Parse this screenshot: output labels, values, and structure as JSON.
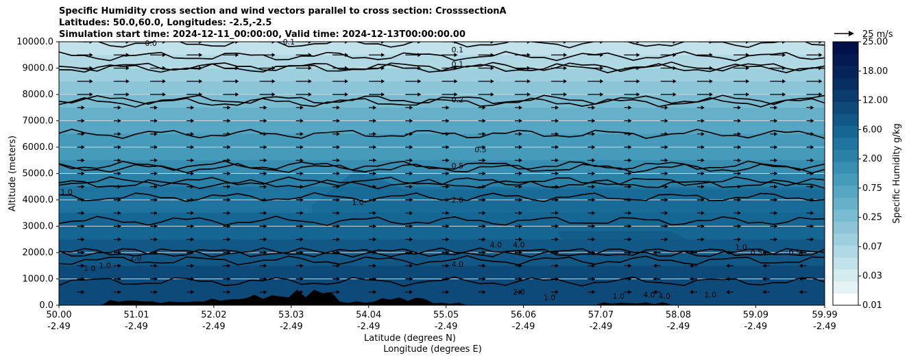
{
  "chart_data": {
    "type": "heatmap",
    "title_lines": [
      "Specific Humidity cross section and wind vectors parallel to cross section: CrosssectionA",
      "Latitudes: 50.0,60.0, Longitudes: -2.5,-2.5",
      "Simulation start time: 2024-12-11_00:00:00, Valid time: 2024-12-13T00:00:00.00"
    ],
    "xlabel_lines": [
      "Latitude (degrees N)",
      "Longitude (degrees E)"
    ],
    "ylabel": "Altitude (meters)",
    "x_ticks": [
      {
        "lat": "50.00",
        "lon": "-2.49"
      },
      {
        "lat": "51.01",
        "lon": "-2.49"
      },
      {
        "lat": "52.02",
        "lon": "-2.49"
      },
      {
        "lat": "53.03",
        "lon": "-2.49"
      },
      {
        "lat": "54.04",
        "lon": "-2.49"
      },
      {
        "lat": "55.05",
        "lon": "-2.49"
      },
      {
        "lat": "56.06",
        "lon": "-2.49"
      },
      {
        "lat": "57.07",
        "lon": "-2.49"
      },
      {
        "lat": "58.08",
        "lon": "-2.49"
      },
      {
        "lat": "59.09",
        "lon": "-2.49"
      },
      {
        "lat": "59.99",
        "lon": "-2.49"
      }
    ],
    "x_range": [
      50.0,
      59.99
    ],
    "y_ticks": [
      "0.0",
      "1000.0",
      "2000.0",
      "3000.0",
      "4000.0",
      "5000.0",
      "6000.0",
      "7000.0",
      "8000.0",
      "9000.0",
      "10000.0"
    ],
    "ylim": [
      0,
      10000
    ],
    "grid": "horizontal",
    "colorbar": {
      "label": "Specific Humidity g/kg",
      "tick_labels": [
        "0.01",
        "0.03",
        "0.07",
        "0.25",
        "0.75",
        "2.00",
        "6.00",
        "12.00",
        "18.00",
        "25.00"
      ],
      "levels": [
        "0.01",
        "0.02",
        "0.03",
        "0.05",
        "0.07",
        "0.1",
        "0.15",
        "0.25",
        "0.35",
        "0.5",
        "0.75",
        "1.0",
        "1.5",
        "2.0",
        "3.0",
        "4.0",
        "6.0",
        "9.0",
        "12.0",
        "15.0",
        "18.0",
        "21.0",
        "25.0"
      ],
      "colors": [
        "#ffffff",
        "#e6f2f5",
        "#d4ebf0",
        "#c2e2eb",
        "#b0d9e5",
        "#9ecfdf",
        "#8cc5d8",
        "#79bbd1",
        "#67b0ca",
        "#56a5c2",
        "#469aba",
        "#378eb1",
        "#2981a8",
        "#1e749e",
        "#166693",
        "#115886",
        "#0d4a7a",
        "#0a3c6d",
        "#082f62",
        "#062459",
        "#041a50",
        "#021049"
      ]
    },
    "wind_reference": {
      "label": "25 m/s",
      "value": 25
    },
    "contours": [
      {
        "level": "0.1",
        "altitudes_m": [
          9950,
          9450,
          9050,
          9000
        ]
      },
      {
        "level": "0.2",
        "altitudes_m": [
          7800,
          7700
        ]
      },
      {
        "level": "0.5",
        "altitudes_m": [
          6500,
          5200,
          5300
        ]
      },
      {
        "level": "1.0",
        "altitudes_m": [
          4700,
          3200,
          2000
        ]
      },
      {
        "level": "2.0",
        "altitudes_m": [
          4600,
          4100
        ]
      },
      {
        "level": "4.0",
        "altitudes_m": [
          2000,
          1700,
          900
        ]
      }
    ],
    "contour_labels": [
      "0.0",
      "0.1",
      "0.1",
      "0.1",
      "0.2",
      "0.5",
      "0.5",
      "1.0",
      "1.0",
      "1.0",
      "1.0",
      "2.0",
      "2.0",
      "4.0",
      "4.0",
      "4.0",
      "1.0",
      "0.5",
      "0.5",
      "1.0",
      "1.0",
      "1.0",
      "4.0",
      "2.0",
      "4.0"
    ],
    "terrain_peak_altitudes_m": [
      200,
      150,
      250,
      400,
      600,
      150,
      300,
      100
    ]
  }
}
